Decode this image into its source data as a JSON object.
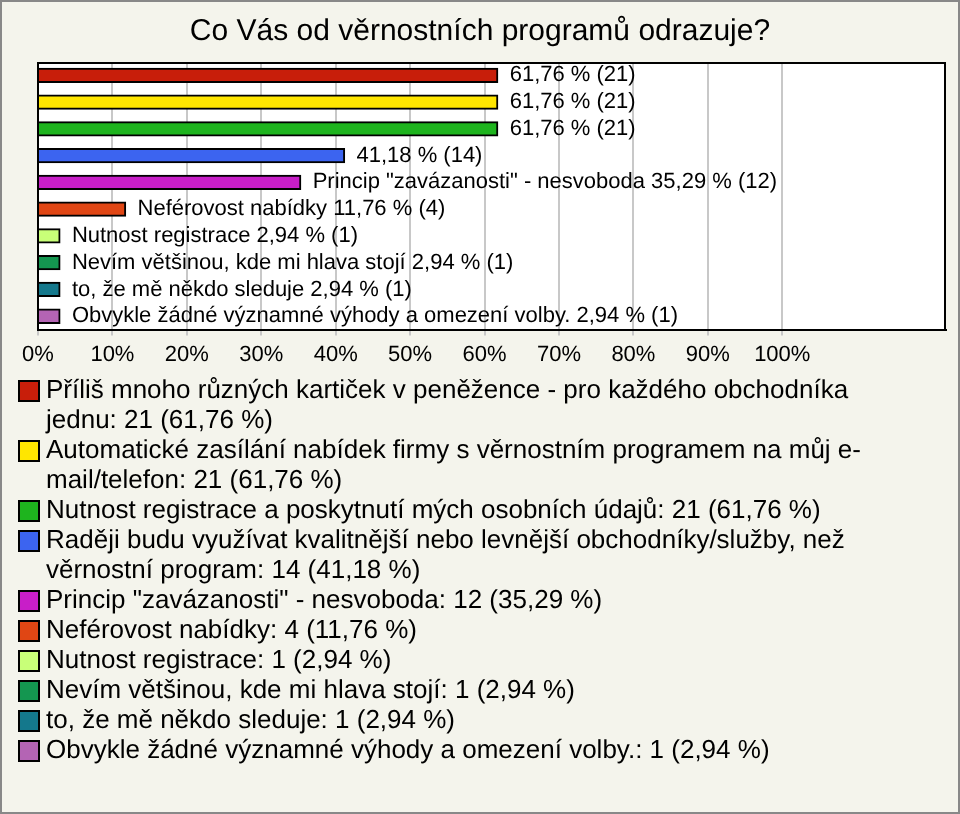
{
  "chart_data": {
    "type": "bar",
    "orientation": "horizontal",
    "stacked": true,
    "title": "Co Vás od věrnostních programů odrazuje?",
    "categories": [
      null,
      null,
      null,
      null,
      null,
      null,
      null,
      null,
      null,
      null
    ],
    "series": [
      {
        "name": "Příliš mnoho různých kartiček v peněžence - pro každého obchodníka jednu: 21 (61,76 %)",
        "color": "#c81e0a",
        "values": [
          61.76,
          null,
          null,
          null,
          null,
          null,
          null,
          null,
          null,
          null
        ],
        "value_labels": [
          "61,76 % (21)",
          null,
          null,
          null,
          null,
          null,
          null,
          null,
          null,
          null
        ]
      },
      {
        "name": "Automatické zasílání nabídek firmy s věrnostním programem na můj e-mail/telefon: 21 (61,76 %)",
        "color": "#ffe600",
        "values": [
          null,
          61.76,
          null,
          null,
          null,
          null,
          null,
          null,
          null,
          null
        ],
        "value_labels": [
          null,
          "61,76 % (21)",
          null,
          null,
          null,
          null,
          null,
          null,
          null,
          null
        ]
      },
      {
        "name": "Nutnost registrace a poskytnutí mých osobních údajů: 21 (61,76 %)",
        "color": "#1eb41e",
        "values": [
          null,
          null,
          61.76,
          null,
          null,
          null,
          null,
          null,
          null,
          null
        ],
        "value_labels": [
          null,
          null,
          "61,76 % (21)",
          null,
          null,
          null,
          null,
          null,
          null,
          null
        ]
      },
      {
        "name": "Raději budu využívat kvalitnější nebo levnější obchodníky/služby, než věrnostní program: 14 (41,18 %)",
        "color": "#3c64f0",
        "values": [
          null,
          null,
          null,
          41.18,
          null,
          null,
          null,
          null,
          null,
          null
        ],
        "value_labels": [
          null,
          null,
          null,
          "41,18 % (14)",
          null,
          null,
          null,
          null,
          null,
          null
        ]
      },
      {
        "name": "Princip \"zavázanosti\" - nesvoboda: 12 (35,29 %)",
        "color": "#c81ec8",
        "values": [
          null,
          null,
          null,
          null,
          35.29,
          null,
          null,
          null,
          null,
          null
        ],
        "value_labels": [
          null,
          null,
          null,
          null,
          "Princip \"zavázanosti\" - nesvoboda 35,29 % (12)",
          null,
          null,
          null,
          null,
          null
        ]
      },
      {
        "name": "Neférovost nabídky: 4 (11,76 %)",
        "color": "#e04614",
        "values": [
          null,
          null,
          null,
          null,
          null,
          11.76,
          null,
          null,
          null,
          null
        ],
        "value_labels": [
          null,
          null,
          null,
          null,
          null,
          "Neférovost nabídky 11,76 % (4)",
          null,
          null,
          null,
          null
        ]
      },
      {
        "name": "Nutnost registrace: 1 (2,94 %)",
        "color": "#c8ff78",
        "values": [
          null,
          null,
          null,
          null,
          null,
          null,
          2.94,
          null,
          null,
          null
        ],
        "value_labels": [
          null,
          null,
          null,
          null,
          null,
          null,
          "Nutnost registrace 2,94 % (1)",
          null,
          null,
          null
        ]
      },
      {
        "name": "Nevím většinou, kde mi hlava stojí: 1 (2,94 %)",
        "color": "#149650",
        "values": [
          null,
          null,
          null,
          null,
          null,
          null,
          null,
          2.94,
          null,
          null
        ],
        "value_labels": [
          null,
          null,
          null,
          null,
          null,
          null,
          null,
          "Nevím většinou, kde mi hlava stojí 2,94 % (1)",
          null,
          null
        ]
      },
      {
        "name": "to, že mě někdo sleduje: 1 (2,94 %)",
        "color": "#14788c",
        "values": [
          null,
          null,
          null,
          null,
          null,
          null,
          null,
          null,
          2.94,
          null
        ],
        "value_labels": [
          null,
          null,
          null,
          null,
          null,
          null,
          null,
          null,
          "to, že mě někdo sleduje 2,94 % (1)",
          null
        ]
      },
      {
        "name": "Obvykle žádné významné výhody a omezení volby.: 1 (2,94 %)",
        "color": "#b464b4",
        "values": [
          null,
          null,
          null,
          null,
          null,
          null,
          null,
          null,
          null,
          2.94
        ],
        "value_labels": [
          null,
          null,
          null,
          null,
          null,
          null,
          null,
          null,
          null,
          "Obvykle žádné významné výhody a omezení volby. 2,94 % (1)"
        ]
      }
    ],
    "xlim": [
      0,
      122
    ],
    "xticks": [
      {
        "value": 0,
        "label": "0%"
      },
      {
        "value": 10,
        "label": "10%"
      },
      {
        "value": 20,
        "label": "20%"
      },
      {
        "value": 30,
        "label": "30%"
      },
      {
        "value": 40,
        "label": "40%"
      },
      {
        "value": 50,
        "label": "50%"
      },
      {
        "value": 60,
        "label": "60%"
      },
      {
        "value": 70,
        "label": "70%"
      },
      {
        "value": 80,
        "label": "80%"
      },
      {
        "value": 90,
        "label": "90%"
      },
      {
        "value": 100,
        "label": "100%"
      }
    ],
    "grid": "x",
    "tick_labels": "x",
    "legend": "bottom"
  }
}
